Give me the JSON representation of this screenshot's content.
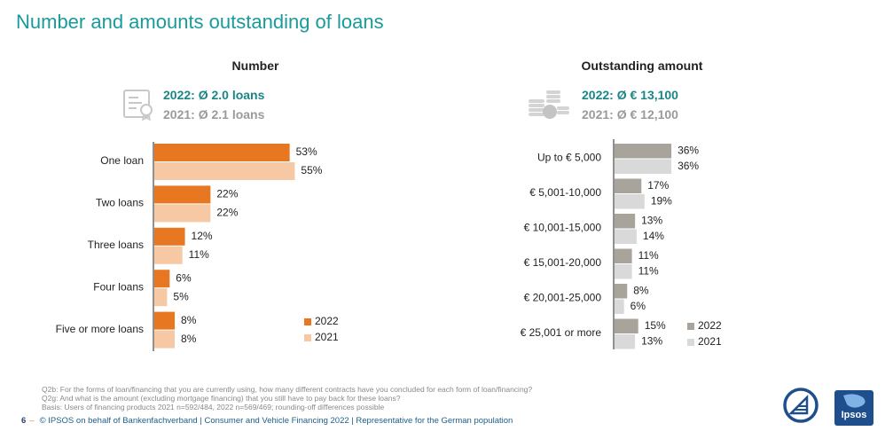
{
  "title": "Number and amounts outstanding of loans",
  "panels": {
    "number": {
      "heading": "Number",
      "avg_2022": "2022: Ø 2.0 loans",
      "avg_2021": "2021: Ø 2.1 loans",
      "icon": "contract-document-icon"
    },
    "amount": {
      "heading": "Outstanding amount",
      "avg_2022": "2022: Ø € 13,100",
      "avg_2021": "2021: Ø € 12,100",
      "icon": "coin-stack-icon"
    }
  },
  "chart_data": [
    {
      "type": "bar",
      "orientation": "horizontal",
      "title": "Number",
      "categories": [
        "One loan",
        "Two loans",
        "Three loans",
        "Four loans",
        "Five or more  loans"
      ],
      "series": [
        {
          "name": "2022",
          "color": "#e87722",
          "values": [
            53,
            22,
            12,
            6,
            8
          ]
        },
        {
          "name": "2021",
          "color": "#f6c8a4",
          "values": [
            55,
            22,
            11,
            5,
            8
          ]
        }
      ],
      "unit": "%",
      "legend": "bottom-right"
    },
    {
      "type": "bar",
      "orientation": "horizontal",
      "title": "Outstanding amount",
      "categories": [
        "Up to € 5,000",
        "€ 5,001-10,000",
        "€ 10,001-15,000",
        "€ 15,001-20,000",
        "€ 20,001-25,000",
        "€ 25,001 or more"
      ],
      "series": [
        {
          "name": "2022",
          "color": "#a8a49c",
          "values": [
            36,
            17,
            13,
            11,
            8,
            15
          ]
        },
        {
          "name": "2021",
          "color": "#d9d9d9",
          "values": [
            36,
            19,
            14,
            11,
            6,
            13
          ]
        }
      ],
      "unit": "%",
      "legend": "bottom-right"
    }
  ],
  "footnotes": [
    "Q2b: For the forms of loan/financing that you are currently using, how many different contracts have you concluded for each form of loan/financing?",
    "Q2g: And what is the amount (excluding mortgage financing) that you still have to pay back for these loans?",
    "Basis: Users of financing products 2021 n=592/484, 2022 n=569/469; rounding-off differences possible"
  ],
  "footer": {
    "page": "6",
    "text": "© IPSOS on behalf of Bankenfachverband | Consumer and Vehicle Financing 2022 | Representative for the German population"
  },
  "logos": {
    "left": "bankenfachverband-logo",
    "right": "Ipsos"
  }
}
